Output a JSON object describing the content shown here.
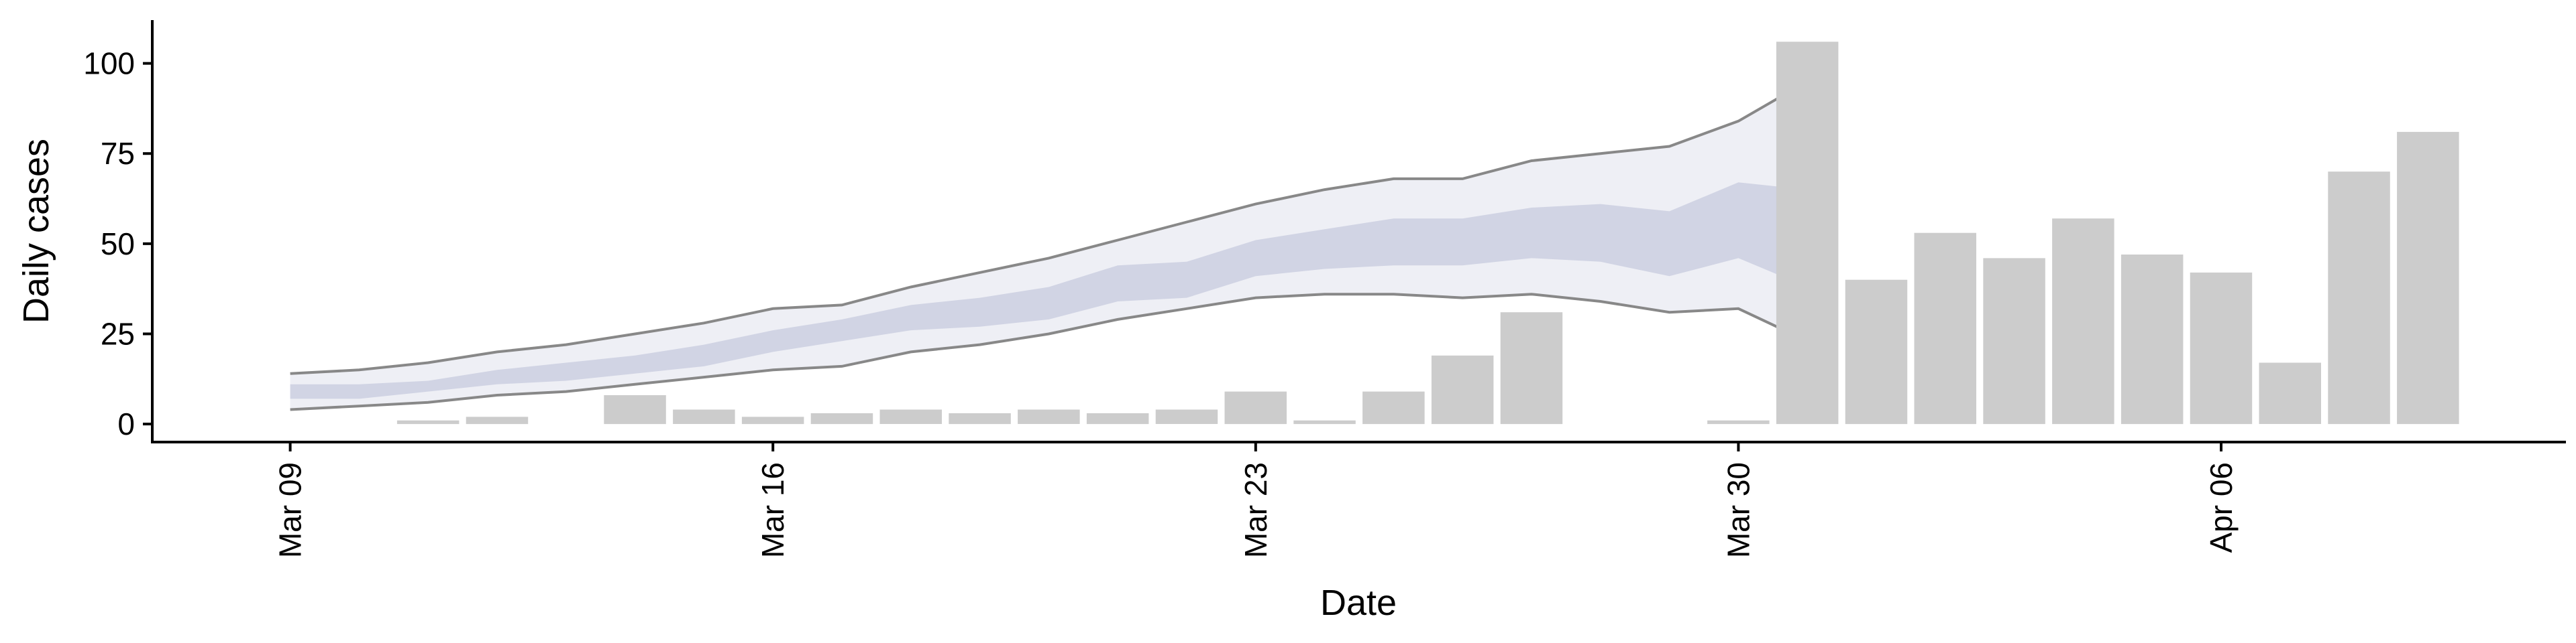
{
  "chart_data": {
    "type": "bar",
    "xlabel": "Date",
    "ylabel": "Daily cases",
    "xlim": [
      "2020-03-07",
      "2020-04-11"
    ],
    "ylim": [
      -5,
      112
    ],
    "grid": false,
    "legend": "none",
    "x_ticks": [
      {
        "date": "2020-03-09",
        "label": "Mar 09"
      },
      {
        "date": "2020-03-16",
        "label": "Mar 16"
      },
      {
        "date": "2020-03-23",
        "label": "Mar 23"
      },
      {
        "date": "2020-03-30",
        "label": "Mar 30"
      },
      {
        "date": "2020-04-06",
        "label": "Apr 06"
      }
    ],
    "y_ticks": [
      0,
      25,
      50,
      75,
      100
    ],
    "bars": {
      "color": "#cccccc",
      "dates": [
        "2020-03-11",
        "2020-03-12",
        "2020-03-14",
        "2020-03-15",
        "2020-03-16",
        "2020-03-17",
        "2020-03-18",
        "2020-03-19",
        "2020-03-20",
        "2020-03-21",
        "2020-03-22",
        "2020-03-23",
        "2020-03-24",
        "2020-03-25",
        "2020-03-26",
        "2020-03-27",
        "2020-03-30",
        "2020-03-31",
        "2020-04-01",
        "2020-04-02",
        "2020-04-03",
        "2020-04-04",
        "2020-04-05",
        "2020-04-06",
        "2020-04-07",
        "2020-04-08",
        "2020-04-09"
      ],
      "values": [
        1,
        2,
        8,
        4,
        2,
        3,
        4,
        3,
        4,
        3,
        4,
        9,
        1,
        9,
        19,
        31,
        1,
        106,
        40,
        53,
        46,
        57,
        47,
        42,
        17,
        70,
        81
      ]
    },
    "bands": {
      "dates": [
        "2020-03-09",
        "2020-03-10",
        "2020-03-11",
        "2020-03-12",
        "2020-03-13",
        "2020-03-14",
        "2020-03-15",
        "2020-03-16",
        "2020-03-17",
        "2020-03-18",
        "2020-03-19",
        "2020-03-20",
        "2020-03-21",
        "2020-03-22",
        "2020-03-23",
        "2020-03-24",
        "2020-03-25",
        "2020-03-26",
        "2020-03-27",
        "2020-03-28",
        "2020-03-29",
        "2020-03-30",
        "2020-03-31"
      ],
      "outer_lower": [
        4,
        5,
        6,
        8,
        9,
        11,
        13,
        15,
        16,
        20,
        22,
        25,
        29,
        32,
        35,
        36,
        36,
        35,
        36,
        34,
        31,
        32,
        23
      ],
      "outer_upper": [
        14,
        15,
        17,
        20,
        22,
        25,
        28,
        32,
        33,
        38,
        42,
        46,
        51,
        56,
        61,
        65,
        68,
        68,
        73,
        75,
        77,
        84,
        95
      ],
      "inner_lower": [
        7,
        7,
        9,
        11,
        12,
        14,
        16,
        20,
        23,
        26,
        27,
        29,
        34,
        35,
        41,
        43,
        44,
        44,
        46,
        45,
        41,
        46,
        38
      ],
      "inner_upper": [
        11,
        11,
        12,
        15,
        17,
        19,
        22,
        26,
        29,
        33,
        35,
        38,
        44,
        45,
        51,
        54,
        57,
        57,
        60,
        61,
        59,
        67,
        65
      ],
      "outer_fill": "#e8e9f2",
      "inner_fill": "#c9cde0",
      "edge_color": "#888888"
    }
  }
}
